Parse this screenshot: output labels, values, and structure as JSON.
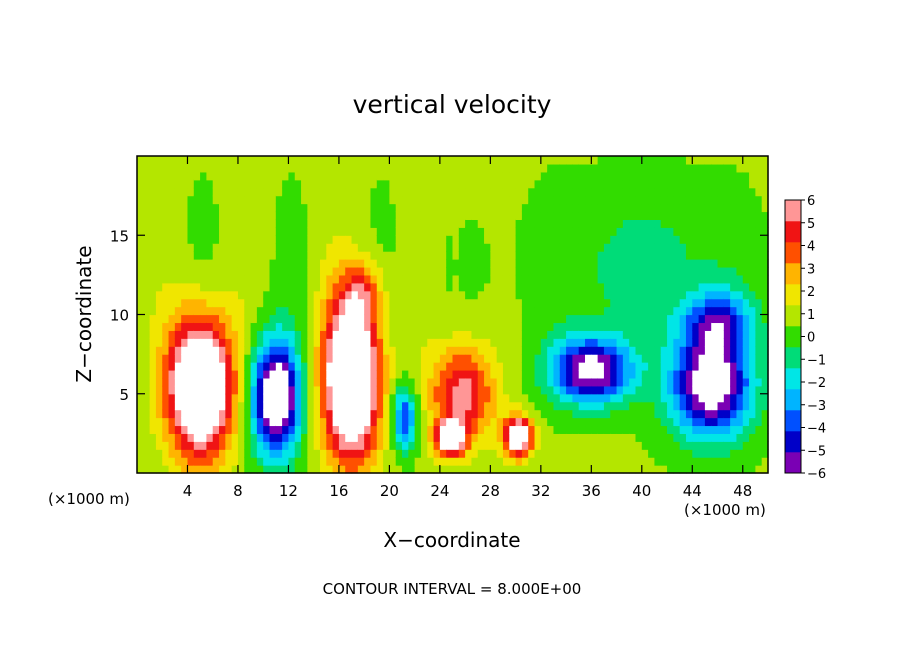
{
  "chart_data": {
    "type": "heatmap",
    "title": "vertical velocity",
    "xlabel": "X−coordinate",
    "ylabel": "Z−coordinate",
    "x_unit_left": "(×1000 m)",
    "x_unit_right": "(×1000 m)",
    "footer": "CONTOUR INTERVAL = 8.000E+00",
    "xlim": [
      0,
      50
    ],
    "ylim": [
      0,
      20
    ],
    "x_ticks": [
      4,
      8,
      12,
      16,
      20,
      24,
      28,
      32,
      36,
      40,
      44,
      48
    ],
    "x_tick_labels": [
      "4",
      "8",
      "12",
      "16",
      "20",
      "24",
      "28",
      "32",
      "36",
      "40",
      "44",
      "48"
    ],
    "y_ticks": [
      5,
      10,
      15
    ],
    "y_tick_labels": [
      "5",
      "10",
      "15"
    ],
    "colorbar": {
      "min": -6,
      "max": 6,
      "ticks": [
        6,
        5,
        4,
        3,
        2,
        1,
        0,
        -1,
        -2,
        -3,
        -4,
        -5,
        -6
      ],
      "tick_labels": [
        "6",
        "5",
        "4",
        "3",
        "2",
        "1",
        "0",
        "−1",
        "−2",
        "−3",
        "−4",
        "−5",
        "−6"
      ],
      "colors": [
        "#7a00b4",
        "#0000c8",
        "#0050ff",
        "#00b4ff",
        "#00e6e6",
        "#00dc78",
        "#32dc00",
        "#b4e600",
        "#f0e600",
        "#ffb400",
        "#ff5000",
        "#f01414",
        "#ff9696"
      ]
    },
    "features": [
      {
        "kind": "updraft",
        "x": 5.0,
        "z": 5.5,
        "rx": 3.2,
        "rz": 5.5,
        "peak": 10
      },
      {
        "kind": "updraft",
        "x": 17.0,
        "z": 6.0,
        "rx": 2.8,
        "rz": 6.5,
        "peak": 10
      },
      {
        "kind": "updraft",
        "x": 25.8,
        "z": 5.0,
        "rx": 3.2,
        "rz": 3.8,
        "peak": 5
      },
      {
        "kind": "updraft",
        "x": 24.8,
        "z": 2.2,
        "rx": 1.4,
        "rz": 1.3,
        "peak": 8
      },
      {
        "kind": "updraft",
        "x": 30.2,
        "z": 2.3,
        "rx": 1.4,
        "rz": 1.6,
        "peak": 8
      },
      {
        "kind": "updraft",
        "x": 18.0,
        "z": 11.5,
        "rx": 1.8,
        "rz": 2.2,
        "peak": 2.5
      },
      {
        "kind": "downdraft",
        "x": 11.0,
        "z": 4.8,
        "rx": 2.4,
        "rz": 4.5,
        "peak": -9
      },
      {
        "kind": "downdraft",
        "x": 21.2,
        "z": 3.5,
        "rx": 1.2,
        "rz": 2.5,
        "peak": -5
      },
      {
        "kind": "downdraft",
        "x": 36.0,
        "z": 6.5,
        "rx": 4.0,
        "rz": 2.6,
        "peak": -7.5
      },
      {
        "kind": "downdraft",
        "x": 45.5,
        "z": 5.5,
        "rx": 4.0,
        "rz": 4.0,
        "peak": -8
      },
      {
        "kind": "downdraft",
        "x": 46.0,
        "z": 9.5,
        "rx": 3.5,
        "rz": 2.5,
        "peak": -4.5
      },
      {
        "kind": "downdraft",
        "x": 40.0,
        "z": 13.0,
        "rx": 10.0,
        "rz": 6.0,
        "peak": -1.5
      }
    ]
  }
}
